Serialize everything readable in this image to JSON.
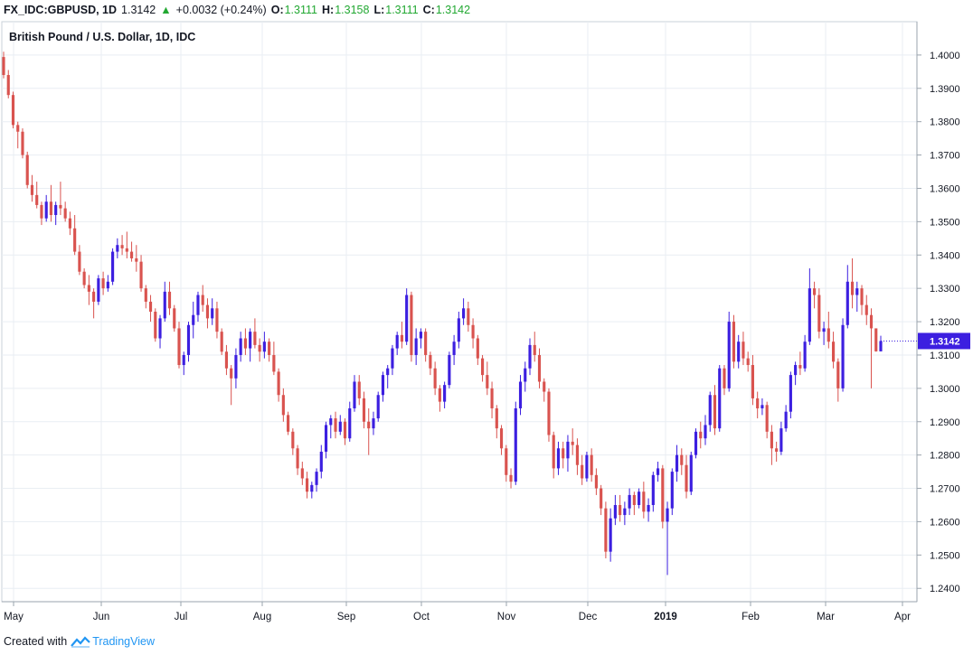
{
  "header": {
    "symbol": "FX_IDC:GBPUSD, 1D",
    "last": "1.3142",
    "change": "+0.0032 (+0.24%)",
    "o_label": "O:",
    "o_val": "1.3111",
    "h_label": "H:",
    "h_val": "1.3158",
    "l_label": "L:",
    "l_val": "1.3111",
    "c_label": "C:",
    "c_val": "1.3142"
  },
  "footer": {
    "created_with": "Created with",
    "brand": "TradingView"
  },
  "colors": {
    "up": "#3c1fe0",
    "down": "#d9534f",
    "grid": "#e9eef3",
    "price_tag": "#3c1fe0",
    "up_text": "#22a832"
  },
  "chart_data": {
    "type": "candlestick",
    "title": "British Pound / U.S. Dollar, 1D, IDC",
    "ylim": [
      1.236,
      1.41
    ],
    "y_ticks": [
      "1.4000",
      "1.3900",
      "1.3800",
      "1.3700",
      "1.3600",
      "1.3500",
      "1.3400",
      "1.3300",
      "1.3200",
      "1.3100",
      "1.3000",
      "1.2900",
      "1.2800",
      "1.2700",
      "1.2600",
      "1.2500",
      "1.2400"
    ],
    "x_ticks": [
      "May",
      "Jun",
      "Jul",
      "Aug",
      "Sep",
      "Oct",
      "Nov",
      "Dec",
      "2019",
      "Feb",
      "Mar",
      "Apr"
    ],
    "x_ticks_bold": [
      "2019"
    ],
    "last_price_label": "1.3142",
    "grid": true,
    "ohlc": [
      [
        1.3994,
        1.401,
        1.393,
        1.394
      ],
      [
        1.394,
        1.3955,
        1.387,
        1.388
      ],
      [
        1.388,
        1.389,
        1.378,
        1.379
      ],
      [
        1.379,
        1.38,
        1.372,
        1.377
      ],
      [
        1.377,
        1.378,
        1.369,
        1.37
      ],
      [
        1.37,
        1.371,
        1.36,
        1.361
      ],
      [
        1.361,
        1.364,
        1.356,
        1.358
      ],
      [
        1.358,
        1.362,
        1.354,
        1.355
      ],
      [
        1.355,
        1.356,
        1.349,
        1.351
      ],
      [
        1.351,
        1.358,
        1.35,
        1.356
      ],
      [
        1.356,
        1.361,
        1.35,
        1.352
      ],
      [
        1.352,
        1.356,
        1.349,
        1.355
      ],
      [
        1.355,
        1.362,
        1.352,
        1.354
      ],
      [
        1.354,
        1.356,
        1.35,
        1.351
      ],
      [
        1.351,
        1.353,
        1.346,
        1.348
      ],
      [
        1.348,
        1.352,
        1.34,
        1.341
      ],
      [
        1.341,
        1.343,
        1.334,
        1.335
      ],
      [
        1.335,
        1.336,
        1.33,
        1.331
      ],
      [
        1.331,
        1.334,
        1.325,
        1.329
      ],
      [
        1.329,
        1.33,
        1.321,
        1.326
      ],
      [
        1.326,
        1.334,
        1.325,
        1.333
      ],
      [
        1.333,
        1.335,
        1.328,
        1.33
      ],
      [
        1.33,
        1.334,
        1.329,
        1.332
      ],
      [
        1.332,
        1.342,
        1.331,
        1.341
      ],
      [
        1.341,
        1.345,
        1.339,
        1.343
      ],
      [
        1.343,
        1.346,
        1.34,
        1.342
      ],
      [
        1.342,
        1.347,
        1.339,
        1.341
      ],
      [
        1.341,
        1.344,
        1.338,
        1.339
      ],
      [
        1.339,
        1.343,
        1.335,
        1.338
      ],
      [
        1.338,
        1.34,
        1.329,
        1.33
      ],
      [
        1.33,
        1.331,
        1.324,
        1.326
      ],
      [
        1.326,
        1.328,
        1.32,
        1.323
      ],
      [
        1.323,
        1.324,
        1.314,
        1.315
      ],
      [
        1.315,
        1.322,
        1.312,
        1.321
      ],
      [
        1.321,
        1.332,
        1.32,
        1.329
      ],
      [
        1.329,
        1.332,
        1.322,
        1.324
      ],
      [
        1.324,
        1.325,
        1.317,
        1.318
      ],
      [
        1.318,
        1.32,
        1.306,
        1.307
      ],
      [
        1.307,
        1.311,
        1.304,
        1.31
      ],
      [
        1.31,
        1.32,
        1.308,
        1.319
      ],
      [
        1.319,
        1.326,
        1.315,
        1.322
      ],
      [
        1.322,
        1.329,
        1.32,
        1.328
      ],
      [
        1.328,
        1.331,
        1.323,
        1.325
      ],
      [
        1.325,
        1.327,
        1.318,
        1.321
      ],
      [
        1.321,
        1.327,
        1.319,
        1.324
      ],
      [
        1.324,
        1.326,
        1.315,
        1.317
      ],
      [
        1.317,
        1.318,
        1.31,
        1.311
      ],
      [
        1.311,
        1.313,
        1.304,
        1.306
      ],
      [
        1.306,
        1.307,
        1.295,
        1.303
      ],
      [
        1.303,
        1.312,
        1.3,
        1.31
      ],
      [
        1.31,
        1.317,
        1.308,
        1.315
      ],
      [
        1.315,
        1.318,
        1.31,
        1.312
      ],
      [
        1.312,
        1.318,
        1.308,
        1.317
      ],
      [
        1.317,
        1.321,
        1.312,
        1.313
      ],
      [
        1.313,
        1.315,
        1.308,
        1.311
      ],
      [
        1.311,
        1.317,
        1.309,
        1.314
      ],
      [
        1.314,
        1.315,
        1.308,
        1.31
      ],
      [
        1.31,
        1.314,
        1.304,
        1.305
      ],
      [
        1.305,
        1.306,
        1.296,
        1.298
      ],
      [
        1.298,
        1.3,
        1.29,
        1.292
      ],
      [
        1.292,
        1.293,
        1.286,
        1.287
      ],
      [
        1.287,
        1.288,
        1.28,
        1.282
      ],
      [
        1.282,
        1.283,
        1.274,
        1.276
      ],
      [
        1.276,
        1.278,
        1.271,
        1.273
      ],
      [
        1.273,
        1.275,
        1.267,
        1.269
      ],
      [
        1.269,
        1.272,
        1.267,
        1.271
      ],
      [
        1.271,
        1.276,
        1.269,
        1.275
      ],
      [
        1.275,
        1.283,
        1.273,
        1.281
      ],
      [
        1.281,
        1.29,
        1.279,
        1.289
      ],
      [
        1.289,
        1.292,
        1.285,
        1.291
      ],
      [
        1.291,
        1.293,
        1.285,
        1.287
      ],
      [
        1.287,
        1.292,
        1.286,
        1.29
      ],
      [
        1.29,
        1.291,
        1.283,
        1.285
      ],
      [
        1.285,
        1.296,
        1.284,
        1.294
      ],
      [
        1.294,
        1.304,
        1.293,
        1.302
      ],
      [
        1.302,
        1.304,
        1.295,
        1.297
      ],
      [
        1.297,
        1.299,
        1.288,
        1.29
      ],
      [
        1.29,
        1.294,
        1.28,
        1.288
      ],
      [
        1.288,
        1.293,
        1.286,
        1.291
      ],
      [
        1.291,
        1.299,
        1.29,
        1.298
      ],
      [
        1.298,
        1.305,
        1.296,
        1.304
      ],
      [
        1.304,
        1.307,
        1.3,
        1.306
      ],
      [
        1.306,
        1.313,
        1.304,
        1.312
      ],
      [
        1.312,
        1.317,
        1.31,
        1.316
      ],
      [
        1.316,
        1.32,
        1.312,
        1.314
      ],
      [
        1.314,
        1.33,
        1.313,
        1.328
      ],
      [
        1.328,
        1.329,
        1.308,
        1.31
      ],
      [
        1.31,
        1.318,
        1.307,
        1.315
      ],
      [
        1.315,
        1.318,
        1.312,
        1.317
      ],
      [
        1.317,
        1.318,
        1.308,
        1.31
      ],
      [
        1.31,
        1.311,
        1.304,
        1.306
      ],
      [
        1.306,
        1.308,
        1.298,
        1.3
      ],
      [
        1.3,
        1.301,
        1.293,
        1.296
      ],
      [
        1.296,
        1.302,
        1.294,
        1.301
      ],
      [
        1.301,
        1.311,
        1.3,
        1.31
      ],
      [
        1.31,
        1.316,
        1.307,
        1.314
      ],
      [
        1.314,
        1.323,
        1.312,
        1.321
      ],
      [
        1.321,
        1.327,
        1.319,
        1.324
      ],
      [
        1.324,
        1.326,
        1.317,
        1.319
      ],
      [
        1.319,
        1.321,
        1.312,
        1.315
      ],
      [
        1.315,
        1.316,
        1.307,
        1.309
      ],
      [
        1.309,
        1.31,
        1.302,
        1.304
      ],
      [
        1.304,
        1.308,
        1.298,
        1.3
      ],
      [
        1.3,
        1.302,
        1.291,
        1.294
      ],
      [
        1.294,
        1.295,
        1.285,
        1.288
      ],
      [
        1.288,
        1.289,
        1.28,
        1.282
      ],
      [
        1.282,
        1.283,
        1.272,
        1.274
      ],
      [
        1.274,
        1.276,
        1.27,
        1.272
      ],
      [
        1.272,
        1.296,
        1.271,
        1.294
      ],
      [
        1.294,
        1.304,
        1.292,
        1.302
      ],
      [
        1.302,
        1.308,
        1.299,
        1.306
      ],
      [
        1.306,
        1.315,
        1.304,
        1.313
      ],
      [
        1.313,
        1.317,
        1.308,
        1.31
      ],
      [
        1.31,
        1.312,
        1.3,
        1.302
      ],
      [
        1.302,
        1.303,
        1.296,
        1.299
      ],
      [
        1.299,
        1.3,
        1.284,
        1.286
      ],
      [
        1.286,
        1.287,
        1.273,
        1.276
      ],
      [
        1.276,
        1.284,
        1.274,
        1.282
      ],
      [
        1.282,
        1.284,
        1.276,
        1.279
      ],
      [
        1.279,
        1.286,
        1.275,
        1.284
      ],
      [
        1.284,
        1.288,
        1.28,
        1.283
      ],
      [
        1.283,
        1.285,
        1.274,
        1.277
      ],
      [
        1.277,
        1.28,
        1.271,
        1.273
      ],
      [
        1.273,
        1.281,
        1.272,
        1.28
      ],
      [
        1.28,
        1.282,
        1.272,
        1.274
      ],
      [
        1.274,
        1.276,
        1.268,
        1.27
      ],
      [
        1.27,
        1.271,
        1.262,
        1.264
      ],
      [
        1.264,
        1.266,
        1.249,
        1.251
      ],
      [
        1.251,
        1.264,
        1.248,
        1.261
      ],
      [
        1.261,
        1.268,
        1.259,
        1.265
      ],
      [
        1.265,
        1.268,
        1.26,
        1.262
      ],
      [
        1.262,
        1.266,
        1.259,
        1.264
      ],
      [
        1.264,
        1.27,
        1.262,
        1.268
      ],
      [
        1.268,
        1.269,
        1.262,
        1.265
      ],
      [
        1.265,
        1.27,
        1.264,
        1.269
      ],
      [
        1.269,
        1.272,
        1.261,
        1.263
      ],
      [
        1.263,
        1.267,
        1.26,
        1.265
      ],
      [
        1.265,
        1.275,
        1.263,
        1.274
      ],
      [
        1.274,
        1.278,
        1.272,
        1.276
      ],
      [
        1.276,
        1.277,
        1.258,
        1.26
      ],
      [
        1.26,
        1.266,
        1.244,
        1.264
      ],
      [
        1.264,
        1.276,
        1.262,
        1.275
      ],
      [
        1.275,
        1.283,
        1.272,
        1.28
      ],
      [
        1.28,
        1.282,
        1.274,
        1.277
      ],
      [
        1.277,
        1.28,
        1.267,
        1.269
      ],
      [
        1.269,
        1.281,
        1.268,
        1.28
      ],
      [
        1.28,
        1.288,
        1.279,
        1.287
      ],
      [
        1.287,
        1.29,
        1.282,
        1.285
      ],
      [
        1.285,
        1.292,
        1.283,
        1.289
      ],
      [
        1.289,
        1.299,
        1.287,
        1.298
      ],
      [
        1.298,
        1.301,
        1.286,
        1.288
      ],
      [
        1.288,
        1.307,
        1.287,
        1.306
      ],
      [
        1.306,
        1.307,
        1.298,
        1.3
      ],
      [
        1.3,
        1.323,
        1.299,
        1.32
      ],
      [
        1.32,
        1.322,
        1.306,
        1.308
      ],
      [
        1.308,
        1.316,
        1.306,
        1.314
      ],
      [
        1.314,
        1.317,
        1.307,
        1.309
      ],
      [
        1.309,
        1.311,
        1.305,
        1.307
      ],
      [
        1.307,
        1.31,
        1.295,
        1.297
      ],
      [
        1.297,
        1.299,
        1.291,
        1.294
      ],
      [
        1.294,
        1.297,
        1.292,
        1.295
      ],
      [
        1.295,
        1.296,
        1.285,
        1.287
      ],
      [
        1.287,
        1.289,
        1.277,
        1.282
      ],
      [
        1.282,
        1.284,
        1.278,
        1.281
      ],
      [
        1.281,
        1.29,
        1.28,
        1.288
      ],
      [
        1.288,
        1.295,
        1.287,
        1.293
      ],
      [
        1.293,
        1.305,
        1.291,
        1.304
      ],
      [
        1.304,
        1.308,
        1.301,
        1.307
      ],
      [
        1.307,
        1.311,
        1.304,
        1.306
      ],
      [
        1.306,
        1.316,
        1.305,
        1.314
      ],
      [
        1.314,
        1.336,
        1.313,
        1.33
      ],
      [
        1.33,
        1.332,
        1.324,
        1.328
      ],
      [
        1.328,
        1.33,
        1.315,
        1.317
      ],
      [
        1.317,
        1.32,
        1.313,
        1.318
      ],
      [
        1.318,
        1.323,
        1.312,
        1.314
      ],
      [
        1.314,
        1.317,
        1.306,
        1.308
      ],
      [
        1.308,
        1.309,
        1.296,
        1.3
      ],
      [
        1.3,
        1.321,
        1.299,
        1.319
      ],
      [
        1.319,
        1.337,
        1.318,
        1.332
      ],
      [
        1.332,
        1.339,
        1.324,
        1.328
      ],
      [
        1.328,
        1.332,
        1.323,
        1.33
      ],
      [
        1.33,
        1.331,
        1.322,
        1.325
      ],
      [
        1.325,
        1.328,
        1.319,
        1.322
      ],
      [
        1.322,
        1.324,
        1.3,
        1.318
      ],
      [
        1.318,
        1.318,
        1.311,
        1.3111
      ],
      [
        1.3111,
        1.3158,
        1.3111,
        1.3142
      ]
    ]
  }
}
